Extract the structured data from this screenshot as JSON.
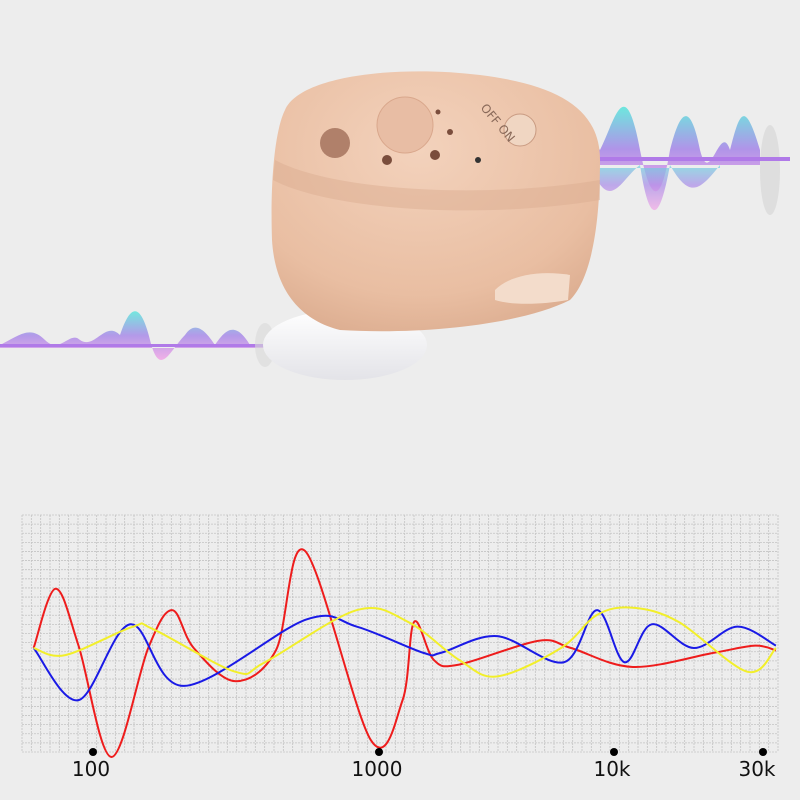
{
  "product_photo": {
    "device_label": "OFF ON",
    "colors": {
      "shell": "#ecc2a6",
      "tip": "#f4f4f6",
      "wave_cyan": "#5fe0e0",
      "wave_purple": "#b07ae8",
      "wave_pink": "#f0a0e0"
    }
  },
  "chart_data": {
    "type": "line",
    "title": "",
    "xlabel": "",
    "ylabel": "",
    "x_scale": "log",
    "x_ticks": [
      100,
      1000,
      10000,
      30000
    ],
    "x_tick_labels": [
      "100",
      "1000",
      "10k",
      "30k"
    ],
    "xlim": [
      62,
      33000
    ],
    "ylim": [
      -50,
      60
    ],
    "grid": true,
    "legend": "none",
    "series": [
      {
        "color": "#ee1c1c",
        "points": [
          [
            62,
            0
          ],
          [
            74,
            25
          ],
          [
            89,
            1
          ],
          [
            116,
            -46
          ],
          [
            156,
            0
          ],
          [
            189,
            16
          ],
          [
            225,
            0
          ],
          [
            314,
            -14
          ],
          [
            436,
            -1
          ],
          [
            551,
            41
          ],
          [
            938,
            -39
          ],
          [
            1260,
            -22
          ],
          [
            1410,
            11
          ],
          [
            1710,
            -5
          ],
          [
            2190,
            -7
          ],
          [
            4750,
            3
          ],
          [
            6560,
            0
          ],
          [
            11500,
            -8
          ],
          [
            20900,
            -2
          ],
          [
            28300,
            1
          ],
          [
            33000,
            -1
          ]
        ]
      },
      {
        "color": "#1a1ae6",
        "points": [
          [
            62,
            0
          ],
          [
            89,
            -22
          ],
          [
            135,
            10
          ],
          [
            208,
            -16
          ],
          [
            556,
            12
          ],
          [
            837,
            9
          ],
          [
            1540,
            -2
          ],
          [
            1840,
            -2
          ],
          [
            3180,
            5
          ],
          [
            6120,
            -6
          ],
          [
            8470,
            16
          ],
          [
            10800,
            -6
          ],
          [
            13200,
            10
          ],
          [
            18000,
            0
          ],
          [
            24800,
            9
          ],
          [
            33000,
            1
          ]
        ]
      },
      {
        "color": "#f2ef2a",
        "points": [
          [
            62,
            0
          ],
          [
            80,
            -3
          ],
          [
            138,
            9
          ],
          [
            162,
            8
          ],
          [
            314,
            -10
          ],
          [
            399,
            -6
          ],
          [
            837,
            16
          ],
          [
            1330,
            11
          ],
          [
            2190,
            -5
          ],
          [
            3180,
            -12
          ],
          [
            5950,
            0
          ],
          [
            8470,
            14
          ],
          [
            11500,
            17
          ],
          [
            16100,
            11
          ],
          [
            26700,
            -10
          ],
          [
            33000,
            0
          ]
        ]
      }
    ]
  }
}
